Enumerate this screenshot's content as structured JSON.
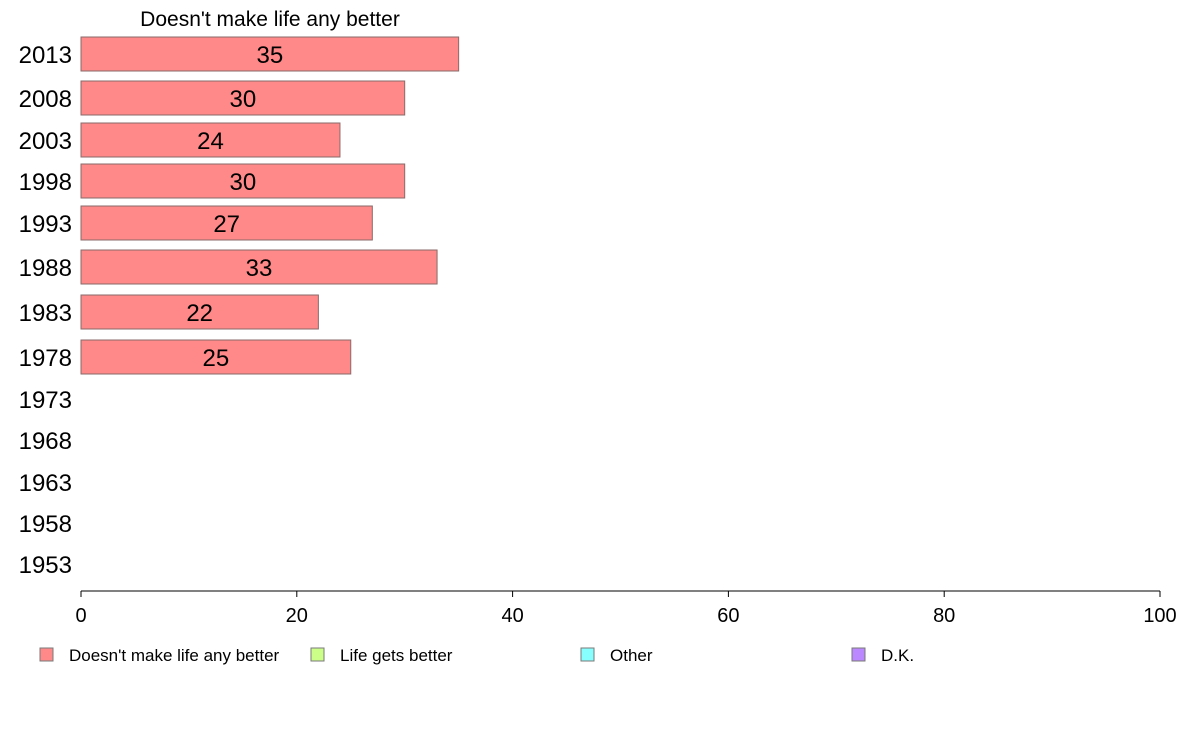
{
  "chart_data": {
    "type": "bar",
    "orientation": "horizontal",
    "title": "Doesn't make life any better",
    "categories": [
      "2013",
      "2008",
      "2003",
      "1998",
      "1993",
      "1988",
      "1983",
      "1978",
      "1973",
      "1968",
      "1963",
      "1958",
      "1953"
    ],
    "series": [
      {
        "name": "Doesn't make life any better",
        "color": "#ff8888",
        "values": [
          35,
          30,
          24,
          30,
          27,
          33,
          22,
          25,
          null,
          null,
          null,
          null,
          null
        ],
        "labels": [
          "35",
          "30",
          "24",
          "30",
          "27",
          "33",
          "22",
          "25",
          "",
          "",
          "",
          "",
          ""
        ]
      }
    ],
    "xlim": [
      0,
      100
    ],
    "xticks": [
      "0",
      "20",
      "40",
      "60",
      "80",
      "100"
    ],
    "xtick_values": [
      0,
      20,
      40,
      60,
      80,
      100
    ],
    "grid": false,
    "legend": {
      "placement": "bottom",
      "items": [
        {
          "label": "Doesn't make life any better",
          "color": "#ff8888"
        },
        {
          "label": "Life gets better",
          "color": "#ccff88"
        },
        {
          "label": "Other",
          "color": "#88ffff"
        },
        {
          "label": "D.K.",
          "color": "#bb88ff"
        }
      ]
    }
  }
}
